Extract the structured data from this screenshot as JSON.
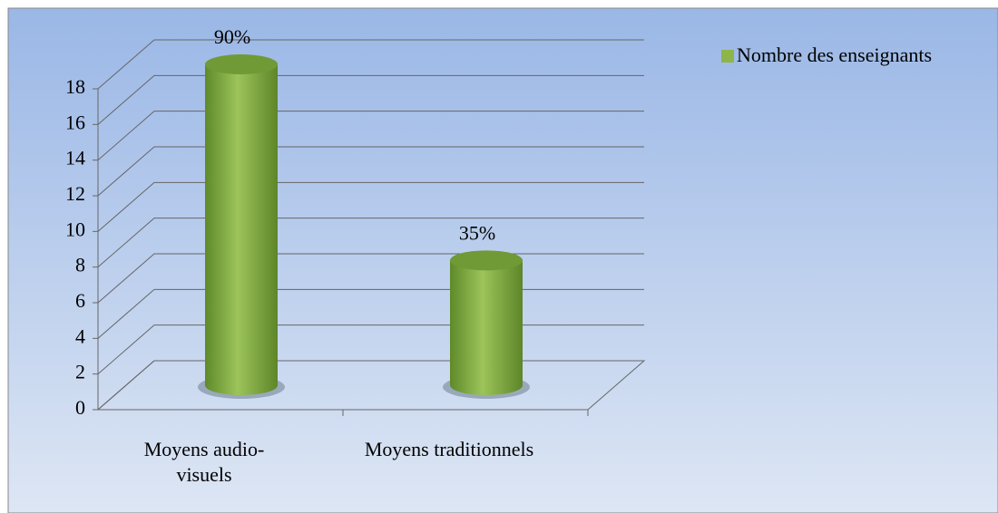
{
  "chart_data": {
    "type": "bar",
    "categories": [
      "Moyens audio-visuels",
      "Moyens traditionnels"
    ],
    "series": [
      {
        "name": "Nombre des enseignants",
        "color": "#8db54a",
        "values": [
          18,
          7
        ],
        "value_labels": [
          "90%",
          "35%"
        ]
      }
    ],
    "ylim": [
      0,
      18
    ],
    "yticks": [
      0,
      2,
      4,
      6,
      8,
      10,
      12,
      14,
      16,
      18
    ],
    "grid": true,
    "legend": "top-right"
  }
}
